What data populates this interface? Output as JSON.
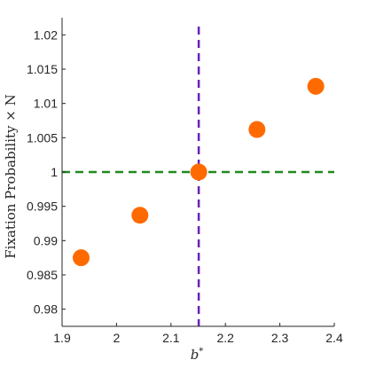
{
  "chart_data": {
    "type": "scatter",
    "xlabel": "b*",
    "ylabel": "Fixation Probability × N",
    "xlim": [
      1.9,
      2.4
    ],
    "ylim": [
      0.9775,
      1.0225
    ],
    "xticks": [
      "1.9",
      "2",
      "2.1",
      "2.2",
      "2.3",
      "2.4"
    ],
    "yticks": [
      "0.98",
      "0.985",
      "0.99",
      "0.995",
      "1",
      "1.005",
      "1.01",
      "1.015",
      "1.02"
    ],
    "grid": false,
    "legend": "none",
    "series": [
      {
        "x": [
          1.935,
          2.043,
          2.151,
          2.258,
          2.366
        ],
        "y": [
          0.9875,
          0.9937,
          1.0,
          1.0062,
          1.0125
        ],
        "color": "#ff6a00"
      }
    ],
    "reference_lines": [
      {
        "orientation": "vertical",
        "value": 2.151,
        "color": "#6b22b8",
        "style": "dashed"
      },
      {
        "orientation": "horizontal",
        "value": 1.0,
        "color": "#1f8a1f",
        "style": "dashed"
      }
    ],
    "axis_label_parts": {
      "xlabel_base": "b",
      "xlabel_sup": "*"
    }
  }
}
